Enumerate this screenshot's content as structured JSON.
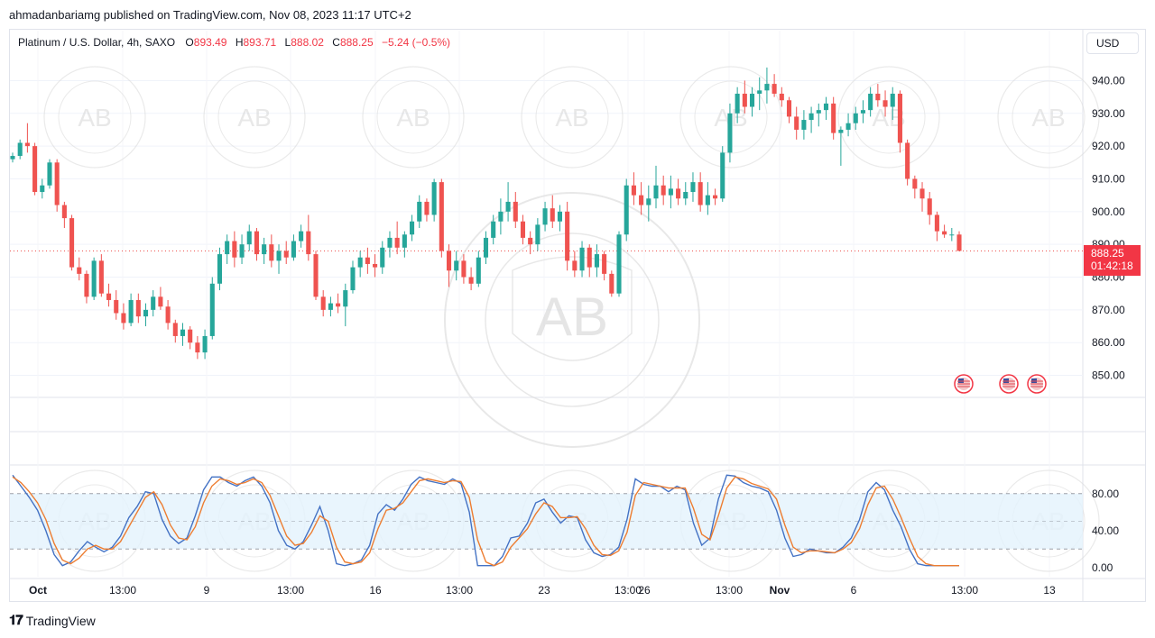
{
  "header": {
    "published_line": "ahmadanbariamg published on TradingView.com, Nov 08, 2023 11:17 UTC+2"
  },
  "legend": {
    "symbol": "Platinum / U.S. Dollar, 4h, SAXO",
    "open_key": "O",
    "open": "893.49",
    "high_key": "H",
    "high": "893.71",
    "low_key": "L",
    "low": "888.02",
    "close_key": "C",
    "close": "888.25",
    "change": "−5.24 (−0.5%)"
  },
  "currency_button": "USD",
  "last_price": {
    "price": "888.25",
    "countdown": "01:42:18"
  },
  "branding": "TradingView",
  "watermark_text": "AB",
  "colors": {
    "up": "#26a69a",
    "down": "#ef5350",
    "stoch_k": "#4472c4",
    "stoch_d": "#ed7d31",
    "band": "#e3f2fd"
  },
  "chart_data": [
    {
      "type": "candlestick",
      "title": "Platinum / U.S. Dollar, 4h, SAXO",
      "ylim": [
        843,
        947
      ],
      "y_ticks": [
        "940.00",
        "930.00",
        "920.00",
        "910.00",
        "900.00",
        "890.00",
        "880.00",
        "870.00",
        "860.00",
        "850.00"
      ],
      "x_ticks": [
        "Oct",
        "13:00",
        "9",
        "13:00",
        "16",
        "13:00",
        "23",
        "13:00",
        "26",
        "13:00",
        "Nov",
        "6",
        "13:00",
        "13"
      ],
      "candles": [
        [
          916,
          918,
          915,
          917
        ],
        [
          917,
          922,
          916,
          921
        ],
        [
          921,
          927,
          918,
          920
        ],
        [
          920,
          921,
          905,
          906
        ],
        [
          906,
          910,
          904,
          908
        ],
        [
          908,
          916,
          907,
          915
        ],
        [
          915,
          916,
          900,
          902
        ],
        [
          902,
          903,
          895,
          898
        ],
        [
          898,
          899,
          882,
          883
        ],
        [
          883,
          886,
          879,
          881
        ],
        [
          881,
          882,
          872,
          874
        ],
        [
          874,
          886,
          873,
          885
        ],
        [
          885,
          887,
          874,
          875
        ],
        [
          875,
          878,
          871,
          873
        ],
        [
          873,
          876,
          867,
          869
        ],
        [
          869,
          872,
          864,
          866
        ],
        [
          866,
          875,
          865,
          873
        ],
        [
          873,
          875,
          866,
          868
        ],
        [
          868,
          872,
          865,
          870
        ],
        [
          870,
          876,
          868,
          874
        ],
        [
          874,
          877,
          870,
          871
        ],
        [
          871,
          873,
          864,
          866
        ],
        [
          866,
          867,
          860,
          862
        ],
        [
          862,
          866,
          859,
          864
        ],
        [
          864,
          865,
          858,
          860
        ],
        [
          860,
          862,
          855,
          857
        ],
        [
          857,
          864,
          855,
          862
        ],
        [
          862,
          880,
          861,
          878
        ],
        [
          878,
          889,
          876,
          887
        ],
        [
          887,
          893,
          884,
          891
        ],
        [
          891,
          894,
          883,
          886
        ],
        [
          886,
          893,
          884,
          890
        ],
        [
          890,
          896,
          888,
          894
        ],
        [
          894,
          895,
          885,
          887
        ],
        [
          887,
          892,
          884,
          890
        ],
        [
          890,
          893,
          883,
          885
        ],
        [
          885,
          890,
          881,
          888
        ],
        [
          888,
          891,
          884,
          886
        ],
        [
          886,
          893,
          885,
          891
        ],
        [
          891,
          896,
          889,
          894
        ],
        [
          894,
          899,
          885,
          887
        ],
        [
          887,
          888,
          873,
          874
        ],
        [
          874,
          876,
          868,
          870
        ],
        [
          870,
          874,
          868,
          872
        ],
        [
          872,
          875,
          869,
          871
        ],
        [
          871,
          878,
          865,
          876
        ],
        [
          876,
          885,
          875,
          883
        ],
        [
          883,
          888,
          880,
          886
        ],
        [
          886,
          889,
          881,
          884
        ],
        [
          884,
          887,
          880,
          883
        ],
        [
          883,
          891,
          881,
          889
        ],
        [
          889,
          894,
          886,
          892
        ],
        [
          892,
          897,
          887,
          889
        ],
        [
          889,
          894,
          886,
          893
        ],
        [
          893,
          899,
          891,
          897
        ],
        [
          897,
          905,
          895,
          903
        ],
        [
          903,
          904,
          897,
          899
        ],
        [
          899,
          910,
          897,
          909
        ],
        [
          909,
          910,
          886,
          888
        ],
        [
          888,
          890,
          877,
          882
        ],
        [
          882,
          888,
          879,
          885
        ],
        [
          885,
          887,
          878,
          880
        ],
        [
          880,
          883,
          876,
          878
        ],
        [
          878,
          888,
          877,
          886
        ],
        [
          886,
          894,
          884,
          892
        ],
        [
          892,
          899,
          890,
          897
        ],
        [
          897,
          904,
          893,
          900
        ],
        [
          900,
          909,
          897,
          903
        ],
        [
          903,
          906,
          895,
          897
        ],
        [
          897,
          899,
          890,
          892
        ],
        [
          892,
          894,
          887,
          890
        ],
        [
          890,
          898,
          888,
          896
        ],
        [
          896,
          903,
          894,
          901
        ],
        [
          901,
          905,
          895,
          897
        ],
        [
          897,
          902,
          894,
          900
        ],
        [
          900,
          903,
          882,
          885
        ],
        [
          885,
          888,
          880,
          882
        ],
        [
          882,
          891,
          880,
          889
        ],
        [
          889,
          890,
          880,
          883
        ],
        [
          883,
          890,
          880,
          887
        ],
        [
          887,
          888,
          879,
          881
        ],
        [
          881,
          882,
          874,
          875
        ],
        [
          875,
          894,
          874,
          893
        ],
        [
          893,
          910,
          891,
          908
        ],
        [
          908,
          912,
          902,
          905
        ],
        [
          905,
          909,
          899,
          902
        ],
        [
          902,
          908,
          897,
          904
        ],
        [
          904,
          914,
          901,
          908
        ],
        [
          908,
          911,
          902,
          905
        ],
        [
          905,
          911,
          901,
          907
        ],
        [
          907,
          910,
          902,
          904
        ],
        [
          904,
          909,
          902,
          906
        ],
        [
          906,
          912,
          903,
          909
        ],
        [
          909,
          912,
          900,
          902
        ],
        [
          902,
          909,
          899,
          905
        ],
        [
          905,
          907,
          902,
          904
        ],
        [
          904,
          920,
          903,
          918
        ],
        [
          918,
          933,
          915,
          930
        ],
        [
          930,
          938,
          927,
          936
        ],
        [
          936,
          940,
          930,
          932
        ],
        [
          932,
          938,
          929,
          936
        ],
        [
          936,
          941,
          931,
          937
        ],
        [
          937,
          944,
          933,
          939
        ],
        [
          939,
          942,
          935,
          936
        ],
        [
          936,
          938,
          932,
          934
        ],
        [
          934,
          935,
          927,
          929
        ],
        [
          929,
          932,
          922,
          925
        ],
        [
          925,
          931,
          922,
          928
        ],
        [
          928,
          932,
          924,
          930
        ],
        [
          930,
          933,
          926,
          931
        ],
        [
          931,
          935,
          928,
          933
        ],
        [
          933,
          935,
          922,
          924
        ],
        [
          924,
          926,
          914,
          925
        ],
        [
          925,
          930,
          923,
          927
        ],
        [
          927,
          932,
          925,
          930
        ],
        [
          930,
          934,
          927,
          931
        ],
        [
          931,
          938,
          929,
          936
        ],
        [
          936,
          939,
          932,
          934
        ],
        [
          934,
          937,
          929,
          932
        ],
        [
          932,
          938,
          928,
          936
        ],
        [
          936,
          937,
          918,
          921
        ],
        [
          921,
          922,
          908,
          910
        ],
        [
          910,
          911,
          904,
          907
        ],
        [
          907,
          909,
          900,
          904
        ],
        [
          904,
          906,
          896,
          899
        ],
        [
          899,
          900,
          891,
          894
        ],
        [
          894,
          896,
          892,
          893
        ],
        [
          893,
          895,
          891,
          893
        ],
        [
          893,
          894,
          888,
          888
        ]
      ]
    },
    {
      "type": "line",
      "title": "Stochastic",
      "ylim": [
        -10,
        110
      ],
      "y_ticks": [
        "80.00",
        "40.00",
        "0.00"
      ],
      "band": [
        20,
        80
      ],
      "series": [
        {
          "values": [
            100,
            88,
            76,
            62,
            40,
            14,
            2,
            6,
            18,
            28,
            22,
            17,
            22,
            34,
            54,
            66,
            82,
            80,
            52,
            34,
            26,
            32,
            56,
            84,
            98,
            98,
            92,
            88,
            94,
            98,
            88,
            70,
            40,
            24,
            20,
            28,
            46,
            66,
            40,
            4,
            2,
            4,
            8,
            24,
            58,
            68,
            62,
            74,
            90,
            98,
            94,
            92,
            90,
            96,
            91,
            60,
            2,
            2,
            2,
            12,
            32,
            34,
            48,
            70,
            74,
            60,
            48,
            56,
            54,
            30,
            16,
            12,
            14,
            22,
            52,
            96,
            90,
            88,
            88,
            82,
            88,
            84,
            48,
            24,
            32,
            74,
            100,
            99,
            92,
            88,
            86,
            82,
            62,
            32,
            12,
            14,
            20,
            18,
            16,
            16,
            22,
            32,
            52,
            82,
            92,
            84,
            62,
            44,
            20,
            4,
            2,
            2,
            2,
            2,
            2
          ]
        },
        {
          "values": [
            98,
            92,
            82,
            70,
            52,
            26,
            8,
            4,
            10,
            20,
            24,
            20,
            20,
            28,
            44,
            60,
            76,
            82,
            68,
            46,
            32,
            30,
            44,
            70,
            88,
            96,
            94,
            90,
            92,
            96,
            92,
            78,
            56,
            34,
            24,
            26,
            38,
            56,
            50,
            22,
            6,
            4,
            6,
            16,
            42,
            62,
            64,
            70,
            82,
            94,
            96,
            94,
            92,
            94,
            93,
            76,
            30,
            6,
            2,
            6,
            22,
            32,
            42,
            58,
            70,
            66,
            54,
            54,
            55,
            42,
            24,
            14,
            13,
            18,
            38,
            78,
            92,
            90,
            88,
            86,
            86,
            86,
            64,
            36,
            30,
            56,
            86,
            98,
            96,
            91,
            88,
            85,
            74,
            46,
            22,
            16,
            18,
            18,
            17,
            16,
            20,
            27,
            42,
            68,
            86,
            88,
            74,
            54,
            32,
            12,
            4,
            2,
            2,
            2,
            2
          ]
        }
      ]
    }
  ]
}
